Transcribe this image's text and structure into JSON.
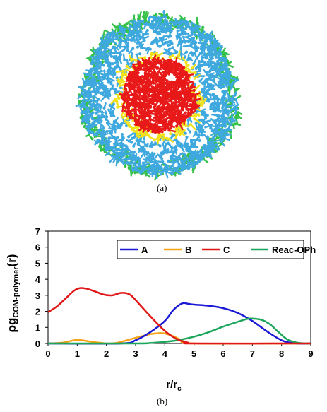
{
  "panel_a": {
    "caption": "(a)",
    "colors": {
      "A": "#3fa9df",
      "B": "#f2e21c",
      "C": "#e81919",
      "Reac-OPh": "#36c24a"
    }
  },
  "panel_b": {
    "caption": "(b)"
  },
  "chart_data": {
    "type": "line",
    "xlabel": "r/r",
    "xlabel_sub": "c",
    "ylabel_main": "ρg",
    "ylabel_sub": "COM-polymer",
    "ylabel_tail": "(r)",
    "xlim": [
      0,
      9
    ],
    "ylim": [
      0,
      7
    ],
    "xticks": [
      "0",
      "1",
      "2",
      "3",
      "4",
      "5",
      "6",
      "7",
      "8",
      "9"
    ],
    "yticks": [
      "0",
      "1",
      "2",
      "3",
      "4",
      "5",
      "6",
      "7"
    ],
    "legend_position": "top-right",
    "grid": false,
    "series": [
      {
        "name": "A",
        "color": "#1a1ad6",
        "x": [
          0,
          2.5,
          3.0,
          3.5,
          4.0,
          4.3,
          4.6,
          4.8,
          5.0,
          5.5,
          6.0,
          6.5,
          7.0,
          7.5,
          8.0,
          8.3,
          8.6,
          9.0
        ],
        "y": [
          0,
          0,
          0.2,
          0.7,
          1.4,
          2.1,
          2.5,
          2.47,
          2.42,
          2.35,
          2.2,
          1.9,
          1.4,
          0.75,
          0.2,
          0.05,
          0,
          0
        ]
      },
      {
        "name": "B",
        "color": "#f5a315",
        "x": [
          0,
          0.5,
          1.0,
          1.5,
          2.0,
          2.3,
          2.5,
          3.0,
          3.5,
          3.8,
          4.0,
          4.3,
          4.6,
          5.0,
          9.0
        ],
        "y": [
          0,
          0.05,
          0.22,
          0.1,
          0,
          0.02,
          0.1,
          0.35,
          0.58,
          0.64,
          0.62,
          0.45,
          0.18,
          0,
          0
        ]
      },
      {
        "name": "C",
        "color": "#e01717",
        "x": [
          0,
          0.3,
          0.6,
          0.9,
          1.1,
          1.3,
          1.6,
          1.9,
          2.2,
          2.5,
          2.8,
          3.1,
          3.5,
          3.9,
          4.2,
          4.5,
          4.8,
          5.0,
          9.0
        ],
        "y": [
          1.95,
          2.3,
          2.8,
          3.3,
          3.45,
          3.42,
          3.25,
          3.05,
          3.0,
          3.15,
          3.05,
          2.5,
          1.7,
          0.95,
          0.5,
          0.2,
          0.05,
          0,
          0
        ]
      },
      {
        "name": "Reac-OPh",
        "color": "#1ca65c",
        "x": [
          0,
          3.0,
          3.5,
          4.0,
          4.5,
          5.0,
          5.5,
          6.0,
          6.5,
          6.8,
          7.0,
          7.3,
          7.6,
          7.9,
          8.2,
          8.5,
          8.8,
          9.0
        ],
        "y": [
          0,
          0,
          0.03,
          0.1,
          0.22,
          0.42,
          0.7,
          1.05,
          1.35,
          1.52,
          1.55,
          1.48,
          1.2,
          0.7,
          0.25,
          0.06,
          0,
          0
        ]
      }
    ]
  }
}
